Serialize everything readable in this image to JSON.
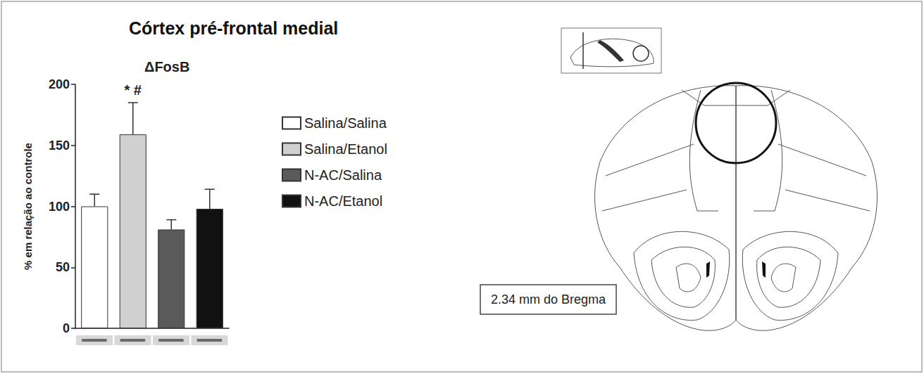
{
  "chart_data": {
    "type": "bar",
    "title": "Córtex pré-frontal medial",
    "subtitle": "ΔFosB",
    "y_label": "% em relação ao controle",
    "categories": [
      null,
      null,
      null,
      null
    ],
    "series": [
      {
        "name": "Salina/Salina",
        "color": "#ffffff",
        "values": [
          100,
          null,
          null,
          null
        ],
        "errors": [
          10,
          null,
          null,
          null
        ]
      },
      {
        "name": "Salina/Etanol",
        "color": "#d0d0d0",
        "values": [
          null,
          159,
          null,
          null
        ],
        "errors": [
          null,
          26,
          null,
          null
        ]
      },
      {
        "name": "N-AC/Salina",
        "color": "#5a5a5a",
        "values": [
          null,
          null,
          81,
          null
        ],
        "errors": [
          null,
          null,
          8,
          null
        ]
      },
      {
        "name": "N-AC/Etanol",
        "color": "#111111",
        "values": [
          null,
          null,
          null,
          98
        ],
        "errors": [
          null,
          null,
          null,
          16
        ]
      }
    ],
    "ylim": [
      0,
      200
    ],
    "yticks": [
      0,
      50,
      100,
      150,
      200
    ],
    "grid": false,
    "legend": "right",
    "annotations": [
      {
        "text": "* #",
        "series": "Salina/Etanol"
      },
      {
        "text": "2.34 mm do Bregma"
      }
    ]
  }
}
